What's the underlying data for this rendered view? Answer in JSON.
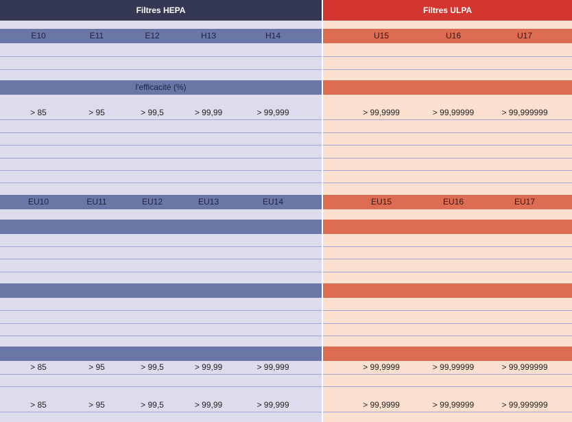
{
  "hepa": {
    "title": "Filtres HEPA",
    "classes_en": [
      "E10",
      "E11",
      "E12",
      "H13",
      "H14"
    ],
    "efficiency_label": "l'efficacité (%)",
    "efficiency": [
      "> 85",
      "> 95",
      "> 99,5",
      "> 99,99",
      "> 99,999"
    ],
    "classes_eu": [
      "EU10",
      "EU11",
      "EU12",
      "EU13",
      "EU14"
    ],
    "efficiency_row2": [
      "> 85",
      "> 95",
      "> 99,5",
      "> 99,99",
      "> 99,999"
    ],
    "efficiency_row3": [
      "> 85",
      "> 95",
      "> 99,5",
      "> 99,99",
      "> 99,999"
    ]
  },
  "ulpa": {
    "title": "Filtres ULPA",
    "classes_en": [
      "U15",
      "U16",
      "U17"
    ],
    "efficiency": [
      "> 99,9999",
      "> 99,99999",
      "> 99,999999"
    ],
    "classes_eu": [
      "EU15",
      "EU16",
      "EU17"
    ],
    "efficiency_row2": [
      "> 99,9999",
      "> 99,99999",
      "> 99,999999"
    ],
    "efficiency_row3": [
      "> 99,9999",
      "> 99,99999",
      "> 99,999999"
    ]
  }
}
